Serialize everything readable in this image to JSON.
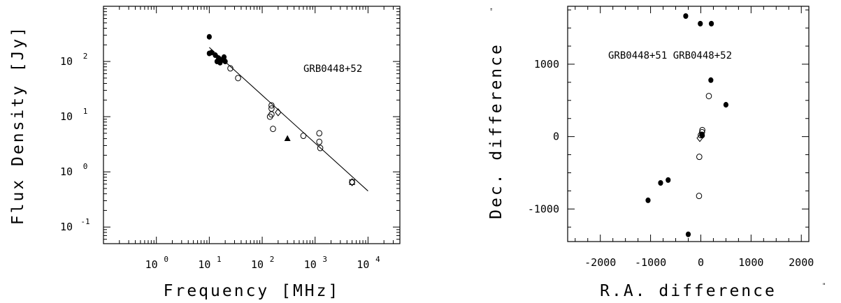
{
  "chart_data": [
    {
      "type": "scatter",
      "title": "",
      "xlabel": "Frequency [MHz]",
      "ylabel": "Flux Density [Jy]",
      "x_scale": "log",
      "y_scale": "log",
      "xlim": [
        0.1,
        40000
      ],
      "ylim": [
        0.05,
        1000
      ],
      "x_ticks": [
        "10 0",
        "10 1",
        "10 2",
        "10 3",
        "10 4"
      ],
      "y_ticks": [
        "10 -1",
        "10 0",
        "10 1",
        "10 2"
      ],
      "annotation": "GRB0448+52",
      "fit_line": {
        "x": [
          10,
          10000
        ],
        "y": [
          180,
          0.45
        ]
      },
      "series": [
        {
          "marker": "filled-circle",
          "x": [
            10,
            10,
            11,
            13,
            14,
            15,
            16,
            17,
            18,
            19,
            20
          ],
          "y": [
            280,
            140,
            145,
            130,
            100,
            115,
            95,
            105,
            110,
            120,
            100
          ]
        },
        {
          "marker": "open-circle",
          "x": [
            25,
            35,
            140,
            150,
            150,
            150,
            160,
            600,
            1200,
            1200,
            1250
          ],
          "y": [
            75,
            50,
            10,
            11,
            14,
            16,
            6,
            4.5,
            5,
            3.5,
            2.7
          ]
        },
        {
          "marker": "open-diamond",
          "x": [
            200,
            5000
          ],
          "y": [
            12,
            0.65
          ]
        },
        {
          "marker": "open-square",
          "x": [
            5000
          ],
          "y": [
            0.65
          ]
        },
        {
          "marker": "filled-triangle",
          "x": [
            300
          ],
          "y": [
            4
          ]
        }
      ]
    },
    {
      "type": "scatter",
      "title": "",
      "xlabel": "R.A. difference",
      "ylabel": "Dec. difference",
      "unit_mark": "\"",
      "xlim": [
        -2650,
        2150
      ],
      "ylim": [
        -1450,
        1800
      ],
      "x_ticks": [
        -2000,
        -1000,
        0,
        1000,
        2000
      ],
      "y_ticks": [
        -1000,
        0,
        1000
      ],
      "annotation": "GRB0448+51  GRB0448+52",
      "series": [
        {
          "marker": "filled-circle",
          "x": [
            -300,
            -10,
            200,
            500,
            -650,
            -1050,
            -800,
            -250,
            210,
            20,
            25,
            30
          ],
          "y": [
            1665,
            1560,
            780,
            440,
            -600,
            -880,
            -640,
            -1350,
            1560,
            30,
            20,
            15
          ]
        },
        {
          "marker": "open-circle",
          "x": [
            160,
            -30,
            -35,
            30,
            25,
            0
          ],
          "y": [
            560,
            -280,
            -820,
            90,
            60,
            20
          ]
        },
        {
          "marker": "open-diamond",
          "x": [
            -20
          ],
          "y": [
            -20
          ]
        }
      ]
    }
  ]
}
